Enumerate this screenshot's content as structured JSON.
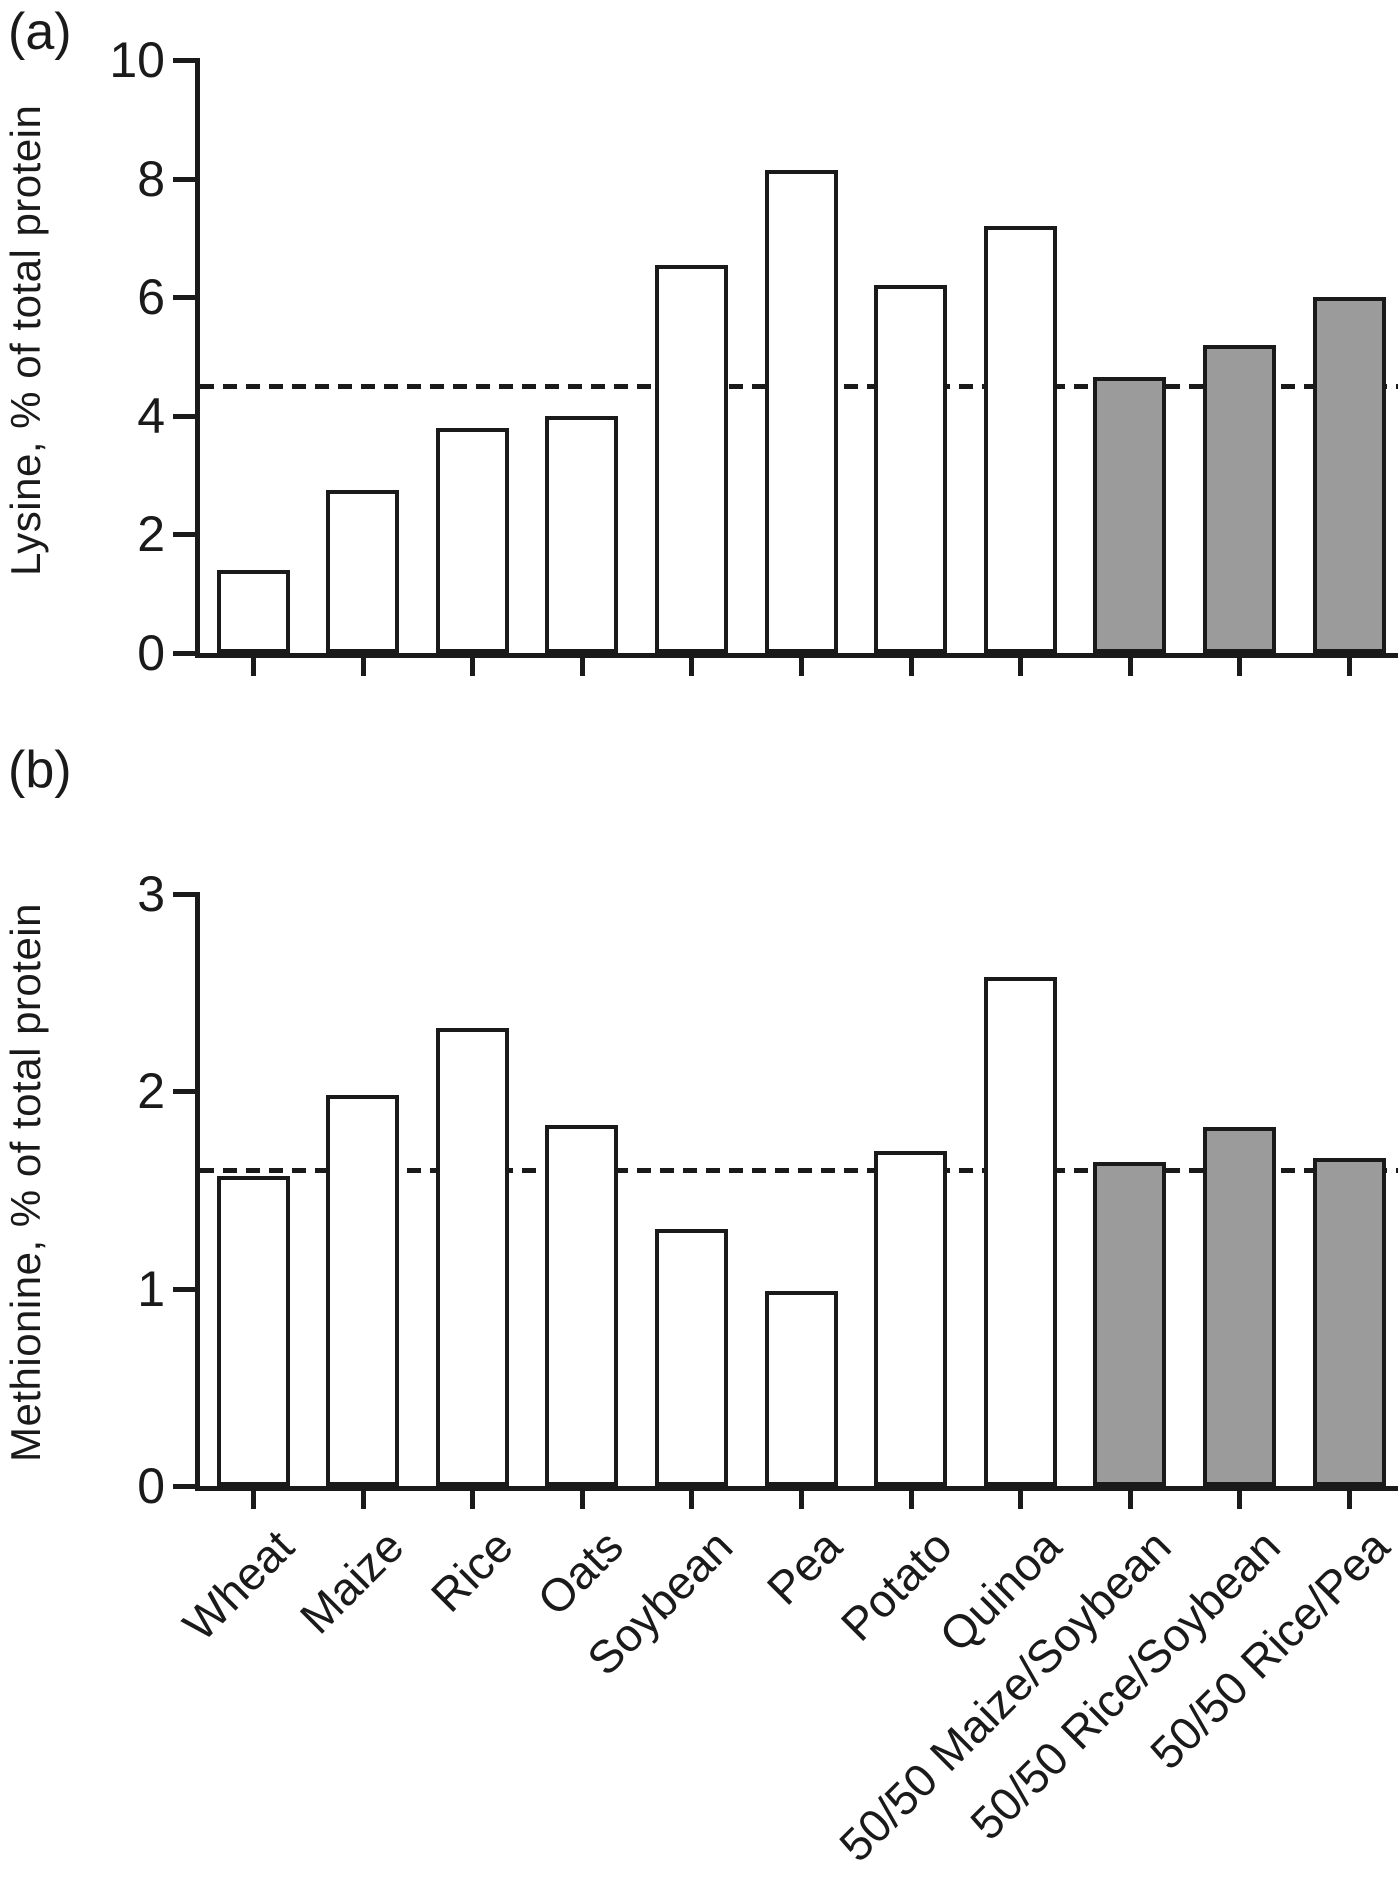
{
  "figure": {
    "panel_a_label": "(a)",
    "panel_b_label": "(b)",
    "background_color": "#ffffff",
    "ink_color": "#1a1a1a",
    "single_source_bar_fill": "#ffffff",
    "blend_bar_fill": "#9b9b9b"
  },
  "chart_data": [
    {
      "type": "bar",
      "panel": "a",
      "title": "",
      "xlabel": "",
      "ylabel": "Lysine, % of total protein",
      "categories": [
        "Wheat",
        "Maize",
        "Rice",
        "Oats",
        "Soybean",
        "Pea",
        "Potato",
        "Quinoa",
        "50/50 Maize/Soybean",
        "50/50 Rice/Soybean",
        "50/50 Rice/Pea"
      ],
      "values": [
        1.4,
        2.75,
        3.8,
        4.0,
        6.55,
        8.15,
        6.2,
        7.2,
        4.65,
        5.2,
        6.0
      ],
      "bar_styles": [
        "single",
        "single",
        "single",
        "single",
        "single",
        "single",
        "single",
        "single",
        "blend",
        "blend",
        "blend"
      ],
      "ylim": [
        0,
        10
      ],
      "yticks": [
        0,
        2,
        4,
        6,
        8,
        10
      ],
      "reference_line_y": 4.5,
      "reference_line_style": "dashed",
      "x_tick_labels_shown": false,
      "grid": false,
      "legend": "none"
    },
    {
      "type": "bar",
      "panel": "b",
      "title": "",
      "xlabel": "",
      "ylabel": "Methionine, % of total protein",
      "categories": [
        "Wheat",
        "Maize",
        "Rice",
        "Oats",
        "Soybean",
        "Pea",
        "Potato",
        "Quinoa",
        "50/50 Maize/Soybean",
        "50/50 Rice/Soybean",
        "50/50 Rice/Pea"
      ],
      "values": [
        1.57,
        1.98,
        2.32,
        1.83,
        1.3,
        0.99,
        1.7,
        2.58,
        1.64,
        1.82,
        1.66
      ],
      "bar_styles": [
        "single",
        "single",
        "single",
        "single",
        "single",
        "single",
        "single",
        "single",
        "blend",
        "blend",
        "blend"
      ],
      "ylim": [
        0,
        3
      ],
      "yticks": [
        0,
        1,
        2,
        3
      ],
      "reference_line_y": 1.6,
      "reference_line_style": "dashed",
      "x_tick_labels_shown": true,
      "grid": false,
      "legend": "none"
    }
  ]
}
